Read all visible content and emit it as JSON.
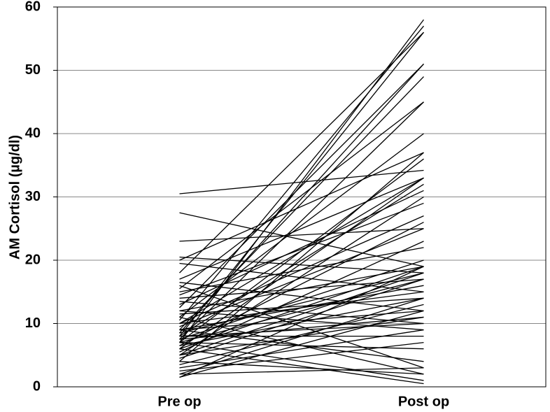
{
  "chart_data": {
    "type": "line",
    "y_label": "AM Cortisol (µg/dl)",
    "categories": [
      "Pre op",
      "Post op"
    ],
    "color": "#000000",
    "ylim": [
      0,
      60
    ],
    "yticks": [
      0,
      10,
      20,
      30,
      40,
      50,
      60
    ],
    "grid": true,
    "series": [
      {
        "values": [
          30.5,
          34.2
        ]
      },
      {
        "values": [
          27.5,
          19
        ]
      },
      {
        "values": [
          23,
          25
        ]
      },
      {
        "values": [
          20.5,
          18
        ]
      },
      {
        "values": [
          20,
          37
        ]
      },
      {
        "values": [
          19.5,
          15
        ]
      },
      {
        "values": [
          18,
          56
        ]
      },
      {
        "values": [
          17,
          33
        ]
      },
      {
        "values": [
          16.5,
          12
        ]
      },
      {
        "values": [
          15.5,
          45
        ]
      },
      {
        "values": [
          15,
          22
        ]
      },
      {
        "values": [
          14.5,
          29
        ]
      },
      {
        "values": [
          14,
          17
        ]
      },
      {
        "values": [
          13.5,
          10
        ]
      },
      {
        "values": [
          12.5,
          51
        ]
      },
      {
        "values": [
          12,
          19
        ]
      },
      {
        "values": [
          11.5,
          14
        ]
      },
      {
        "values": [
          11,
          40
        ]
      },
      {
        "values": [
          10.5,
          57
        ]
      },
      {
        "values": [
          10,
          33
        ]
      },
      {
        "values": [
          10,
          15
        ]
      },
      {
        "values": [
          9.5,
          25
        ]
      },
      {
        "values": [
          9,
          49
        ]
      },
      {
        "values": [
          9,
          12
        ]
      },
      {
        "values": [
          8.5,
          51
        ]
      },
      {
        "values": [
          8.5,
          18
        ]
      },
      {
        "values": [
          8,
          56
        ]
      },
      {
        "values": [
          8,
          32
        ]
      },
      {
        "values": [
          8,
          8
        ]
      },
      {
        "values": [
          7.5,
          45
        ]
      },
      {
        "values": [
          7.5,
          20
        ]
      },
      {
        "values": [
          7.5,
          11
        ]
      },
      {
        "values": [
          7,
          58
        ]
      },
      {
        "values": [
          7,
          36
        ]
      },
      {
        "values": [
          7,
          17
        ]
      },
      {
        "values": [
          7,
          6
        ]
      },
      {
        "values": [
          6.5,
          26
        ]
      },
      {
        "values": [
          6.5,
          14
        ]
      },
      {
        "values": [
          6,
          33
        ]
      },
      {
        "values": [
          6,
          19
        ]
      },
      {
        "values": [
          5.5,
          23
        ]
      },
      {
        "values": [
          5,
          30
        ]
      },
      {
        "values": [
          5,
          11
        ]
      },
      {
        "values": [
          4.5,
          17
        ]
      },
      {
        "values": [
          4,
          37
        ]
      },
      {
        "values": [
          4,
          2
        ]
      },
      {
        "values": [
          3.5,
          13
        ]
      },
      {
        "values": [
          3,
          9
        ]
      },
      {
        "values": [
          2.5,
          7
        ]
      },
      {
        "values": [
          2,
          14
        ]
      },
      {
        "values": [
          2,
          3
        ]
      },
      {
        "values": [
          1.5,
          19
        ]
      },
      {
        "values": [
          1.5,
          12
        ]
      },
      {
        "values": [
          7,
          1
        ]
      },
      {
        "values": [
          6,
          0.5
        ]
      },
      {
        "values": [
          9,
          4
        ]
      },
      {
        "values": [
          11,
          2
        ]
      },
      {
        "values": [
          8,
          10
        ]
      },
      {
        "values": [
          12,
          9
        ]
      },
      {
        "values": [
          16,
          3
        ]
      },
      {
        "values": [
          5,
          18
        ]
      },
      {
        "values": [
          10,
          27
        ]
      },
      {
        "values": [
          9,
          16
        ]
      },
      {
        "values": [
          13,
          31
        ]
      }
    ]
  }
}
